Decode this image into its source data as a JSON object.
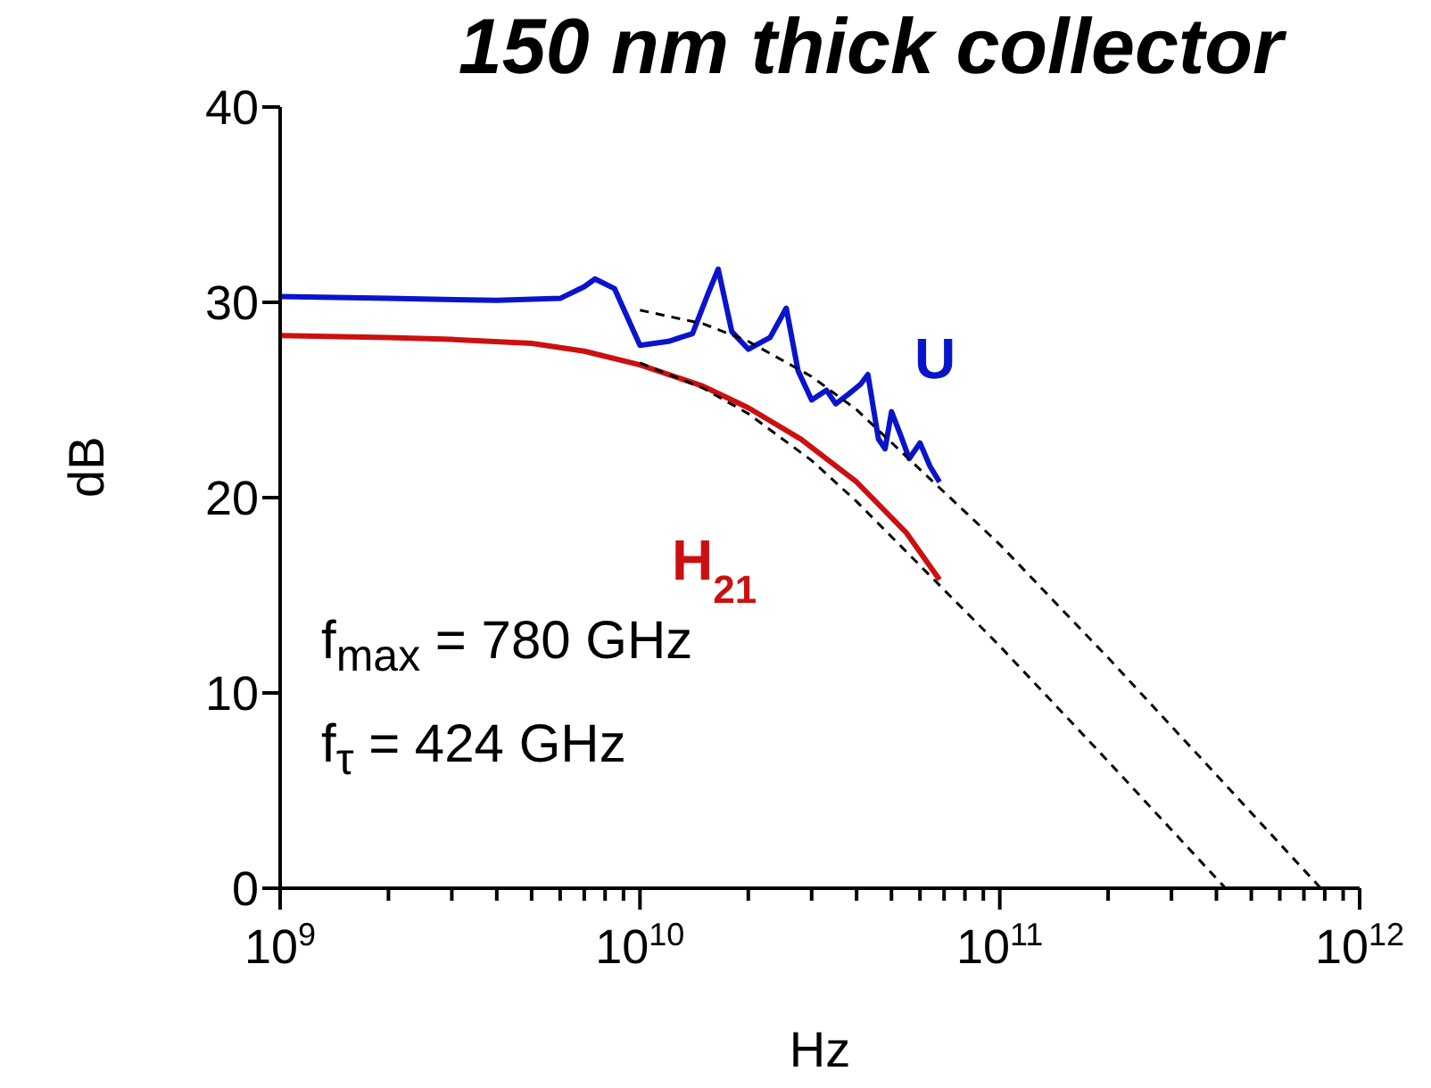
{
  "chart_data": {
    "type": "line",
    "title": "150 nm thick collector",
    "xlabel": "Hz",
    "ylabel": "dB",
    "log": "x",
    "marker": "none",
    "grid": false,
    "legend": false,
    "xlim": [
      1000000000,
      1000000000000
    ],
    "ylim": [
      0,
      40
    ],
    "yticks": [
      0,
      10,
      20,
      30,
      40
    ],
    "xticks": [
      {
        "value": 1000000000,
        "label": "10$^{9}$"
      },
      {
        "value": 2000000000,
        "label": null
      },
      {
        "value": 3000000000,
        "label": null
      },
      {
        "value": 4000000000,
        "label": null
      },
      {
        "value": 5000000000,
        "label": null
      },
      {
        "value": 6000000000,
        "label": null
      },
      {
        "value": 7000000000,
        "label": null
      },
      {
        "value": 8000000000,
        "label": null
      },
      {
        "value": 9000000000,
        "label": null
      },
      {
        "value": 10000000000,
        "label": "10$^{10}$"
      },
      {
        "value": 20000000000,
        "label": null
      },
      {
        "value": 30000000000,
        "label": null
      },
      {
        "value": 40000000000,
        "label": null
      },
      {
        "value": 50000000000,
        "label": null
      },
      {
        "value": 60000000000,
        "label": null
      },
      {
        "value": 70000000000,
        "label": null
      },
      {
        "value": 80000000000,
        "label": null
      },
      {
        "value": 90000000000,
        "label": null
      },
      {
        "value": 100000000000,
        "label": "10$^{11}$"
      },
      {
        "value": 200000000000,
        "label": null
      },
      {
        "value": 300000000000,
        "label": null
      },
      {
        "value": 400000000000,
        "label": null
      },
      {
        "value": 500000000000,
        "label": null
      },
      {
        "value": 600000000000,
        "label": null
      },
      {
        "value": 700000000000,
        "label": null
      },
      {
        "value": 800000000000,
        "label": null
      },
      {
        "value": 900000000000,
        "label": null
      },
      {
        "value": 1000000000000,
        "label": "10$^{12}$"
      }
    ],
    "series": [
      {
        "name": "U",
        "color": "#0a14cc",
        "line_style": "solid",
        "x": [
          1000000000,
          2000000000,
          4000000000,
          6000000000,
          7000000000,
          7500000000,
          8500000000,
          10000000000,
          12000000000,
          14000000000,
          15500000000,
          16500000000,
          18000000000,
          20000000000,
          23000000000,
          25500000000,
          27500000000,
          30000000000,
          33000000000,
          35000000000,
          38000000000,
          41000000000,
          43000000000,
          46000000000,
          48000000000,
          50000000000,
          53000000000,
          56000000000,
          60000000000,
          64000000000,
          68000000000
        ],
        "values": [
          30.3,
          30.2,
          30.1,
          30.2,
          30.8,
          31.2,
          30.7,
          27.8,
          28.0,
          28.4,
          30.5,
          31.7,
          28.5,
          27.6,
          28.2,
          29.7,
          26.5,
          25.0,
          25.5,
          24.8,
          25.3,
          25.8,
          26.3,
          23.0,
          22.5,
          24.4,
          23.2,
          22.0,
          22.8,
          21.6,
          20.8
        ]
      },
      {
        "name": "H$_{21}$",
        "color": "#cc1010",
        "line_style": "solid",
        "x": [
          1000000000,
          2000000000,
          3000000000,
          5000000000,
          7000000000,
          10000000000,
          15000000000,
          20000000000,
          28000000000,
          40000000000,
          55000000000,
          68000000000
        ],
        "values": [
          28.3,
          28.2,
          28.1,
          27.9,
          27.5,
          26.8,
          25.7,
          24.6,
          23.0,
          20.8,
          18.2,
          15.8
        ]
      },
      {
        "color": "#000000",
        "line_style": "dashed",
        "x": [
          10000000000,
          15000000000,
          20000000000,
          30000000000,
          40000000000,
          100000000000,
          200000000000,
          400000000000,
          780000000000
        ],
        "values": [
          29.6,
          28.9,
          28.0,
          26.2,
          24.5,
          17.6,
          11.8,
          5.8,
          0
        ]
      },
      {
        "color": "#000000",
        "line_style": "dashed",
        "x": [
          10000000000,
          15000000000,
          20000000000,
          30000000000,
          40000000000,
          100000000000,
          200000000000,
          424000000000
        ],
        "values": [
          26.9,
          25.6,
          24.3,
          21.9,
          19.8,
          12.4,
          6.5,
          0
        ]
      }
    ],
    "annotations": [
      "f$_{max}$ = 780 GHz",
      "f$_{τ}$ = 424 GHz"
    ]
  }
}
